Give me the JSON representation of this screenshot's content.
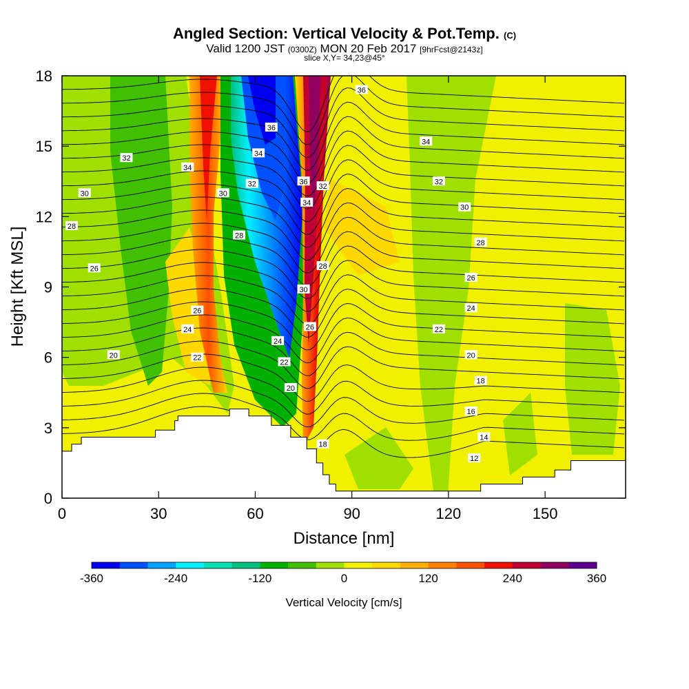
{
  "header": {
    "title": "Angled Section: Vertical Velocity & Pot.Temp.",
    "title_tag": "(C)",
    "valid_pre": "Valid 1200 JST",
    "valid_z": "(0300Z)",
    "valid_post": "MON 20 Feb 2017",
    "fcst": "[9hrFcst@2143z]",
    "slice": "slice X,Y= 34,23@45°"
  },
  "chart_data": {
    "type": "heatmap",
    "xlabel": "Distance [nm]",
    "ylabel": "Height [Kft MSL]",
    "xlim": [
      0,
      175
    ],
    "ylim": [
      0,
      18
    ],
    "x_ticks": [
      0,
      30,
      60,
      90,
      120,
      150
    ],
    "y_ticks": [
      0,
      3,
      6,
      9,
      12,
      15,
      18
    ],
    "colorbar": {
      "title": "Vertical Velocity [cm/s]",
      "ticks": [
        "-360",
        "-240",
        "-120",
        "0",
        "120",
        "240",
        "360"
      ],
      "colors": [
        "#0000f0",
        "#0050ff",
        "#00a0ff",
        "#00f0ff",
        "#00e0b0",
        "#00c080",
        "#00b000",
        "#40c000",
        "#a0e000",
        "#f0f000",
        "#ffd800",
        "#ffb000",
        "#ff8000",
        "#ff5000",
        "#f01000",
        "#c00030",
        "#900060",
        "#600090"
      ]
    },
    "terrain_profile": [
      [
        0,
        2
      ],
      [
        3,
        2
      ],
      [
        3,
        2.3
      ],
      [
        6,
        2.3
      ],
      [
        6,
        2.6
      ],
      [
        29,
        2.6
      ],
      [
        29,
        2.9
      ],
      [
        35,
        2.9
      ],
      [
        35,
        3.3
      ],
      [
        36,
        3.3
      ],
      [
        36,
        3.5
      ],
      [
        52,
        3.5
      ],
      [
        52,
        3.8
      ],
      [
        58,
        3.8
      ],
      [
        58,
        3.5
      ],
      [
        65,
        3.5
      ],
      [
        65,
        3.1
      ],
      [
        71,
        3.1
      ],
      [
        71,
        2.6
      ],
      [
        76,
        2.6
      ],
      [
        76,
        2.1
      ],
      [
        79,
        2.1
      ],
      [
        79,
        1.5
      ],
      [
        81,
        1.5
      ],
      [
        81,
        1.0
      ],
      [
        83,
        1.0
      ],
      [
        83,
        0.6
      ],
      [
        85,
        0.6
      ],
      [
        85,
        0.3
      ],
      [
        130,
        0.3
      ],
      [
        130,
        0.6
      ],
      [
        143,
        0.6
      ],
      [
        143,
        0.9
      ],
      [
        153,
        0.9
      ],
      [
        153,
        1.2
      ],
      [
        158,
        1.2
      ],
      [
        158,
        1.6
      ],
      [
        175,
        1.6
      ]
    ],
    "theta_labels": [
      {
        "text": "36",
        "x": 93,
        "y": 17.4
      },
      {
        "text": "34",
        "x": 113,
        "y": 15.2
      },
      {
        "text": "32",
        "x": 117,
        "y": 13.5
      },
      {
        "text": "30",
        "x": 125,
        "y": 12.4
      },
      {
        "text": "28",
        "x": 130,
        "y": 10.9
      },
      {
        "text": "26",
        "x": 127,
        "y": 9.4
      },
      {
        "text": "24",
        "x": 127,
        "y": 8.1
      },
      {
        "text": "22",
        "x": 117,
        "y": 7.2
      },
      {
        "text": "20",
        "x": 127,
        "y": 6.1
      },
      {
        "text": "18",
        "x": 130,
        "y": 5.0
      },
      {
        "text": "16",
        "x": 127,
        "y": 3.7
      },
      {
        "text": "14",
        "x": 131,
        "y": 2.6
      },
      {
        "text": "12",
        "x": 128,
        "y": 1.7
      },
      {
        "text": "32",
        "x": 20,
        "y": 14.5
      },
      {
        "text": "34",
        "x": 39,
        "y": 14.1
      },
      {
        "text": "30",
        "x": 7,
        "y": 13.0
      },
      {
        "text": "28",
        "x": 3,
        "y": 11.6
      },
      {
        "text": "26",
        "x": 10,
        "y": 9.8
      },
      {
        "text": "30",
        "x": 50,
        "y": 13.0
      },
      {
        "text": "28",
        "x": 55,
        "y": 11.2
      },
      {
        "text": "26",
        "x": 42,
        "y": 8.0
      },
      {
        "text": "24",
        "x": 39,
        "y": 7.2
      },
      {
        "text": "22",
        "x": 42,
        "y": 6.0
      },
      {
        "text": "20",
        "x": 16,
        "y": 6.1
      },
      {
        "text": "36",
        "x": 65,
        "y": 15.8
      },
      {
        "text": "34",
        "x": 61,
        "y": 14.7
      },
      {
        "text": "32",
        "x": 59,
        "y": 13.4
      },
      {
        "text": "36",
        "x": 75,
        "y": 13.5
      },
      {
        "text": "32",
        "x": 81,
        "y": 13.3
      },
      {
        "text": "34",
        "x": 76,
        "y": 12.6
      },
      {
        "text": "28",
        "x": 81,
        "y": 9.9
      },
      {
        "text": "30",
        "x": 75,
        "y": 8.9
      },
      {
        "text": "26",
        "x": 77,
        "y": 7.3
      },
      {
        "text": "24",
        "x": 67,
        "y": 6.7
      },
      {
        "text": "22",
        "x": 69,
        "y": 5.8
      },
      {
        "text": "20",
        "x": 71,
        "y": 4.7
      },
      {
        "text": "18",
        "x": 81,
        "y": 2.3
      }
    ]
  }
}
